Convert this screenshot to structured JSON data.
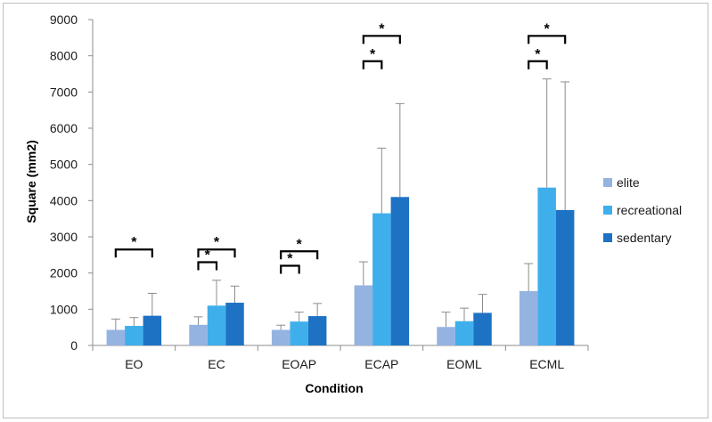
{
  "chart_data": {
    "type": "bar",
    "title": "",
    "xlabel": "Condition",
    "ylabel": "Square (mm2)",
    "ylim": [
      0,
      9000
    ],
    "yticks": [
      "0",
      "1000",
      "2000",
      "3000",
      "4000",
      "5000",
      "6000",
      "7000",
      "8000",
      "9000"
    ],
    "grid": false,
    "legend_position": "right",
    "categories": [
      "EO",
      "EC",
      "EOAP",
      "ECAP",
      "EOML",
      "ECML"
    ],
    "series": [
      {
        "name": "elite",
        "color": "#95B3E1",
        "values": [
          430,
          570,
          430,
          1660,
          510,
          1500
        ],
        "errors": [
          300,
          220,
          130,
          650,
          410,
          760
        ]
      },
      {
        "name": "recreational",
        "color": "#3FAFEB",
        "values": [
          540,
          1100,
          660,
          3650,
          670,
          4360
        ],
        "errors": [
          230,
          700,
          260,
          1800,
          360,
          3000
        ]
      },
      {
        "name": "sedentary",
        "color": "#1E72C4",
        "values": [
          820,
          1180,
          810,
          4100,
          900,
          3740
        ],
        "errors": [
          620,
          460,
          350,
          2580,
          510,
          3540
        ]
      }
    ],
    "significance": [
      {
        "category": "EO",
        "from": "elite",
        "to": "sedentary",
        "y": 2650,
        "label": "*"
      },
      {
        "category": "EC",
        "from": "elite",
        "to": "recreational",
        "y": 2300,
        "label": "*"
      },
      {
        "category": "EC",
        "from": "elite",
        "to": "sedentary",
        "y": 2650,
        "label": "*"
      },
      {
        "category": "EOAP",
        "from": "elite",
        "to": "recreational",
        "y": 2200,
        "label": "*"
      },
      {
        "category": "EOAP",
        "from": "elite",
        "to": "sedentary",
        "y": 2600,
        "label": "*"
      },
      {
        "category": "ECAP",
        "from": "elite",
        "to": "recreational",
        "y": 7850,
        "label": "*"
      },
      {
        "category": "ECAP",
        "from": "elite",
        "to": "sedentary",
        "y": 8550,
        "label": "*"
      },
      {
        "category": "ECML",
        "from": "elite",
        "to": "recreational",
        "y": 7850,
        "label": "*"
      },
      {
        "category": "ECML",
        "from": "elite",
        "to": "sedentary",
        "y": 8550,
        "label": "*"
      }
    ]
  }
}
